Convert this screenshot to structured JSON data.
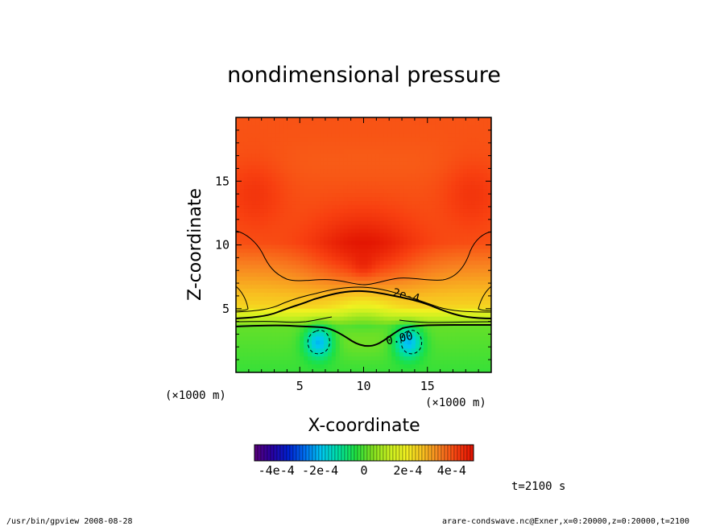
{
  "chart_data": {
    "type": "heatmap",
    "title": "nondimensional pressure",
    "xlabel": "X-coordinate",
    "ylabel": "Z-coordinate",
    "x_unit": "(×1000 m)",
    "y_unit": "(×1000 m)",
    "xlim": [
      0,
      20
    ],
    "ylim": [
      0,
      20
    ],
    "x_ticks": [
      5,
      10,
      15
    ],
    "y_ticks": [
      5,
      10,
      15
    ],
    "x_tick_labels": [
      "5",
      "10",
      "15"
    ],
    "y_tick_labels": [
      "5",
      "10",
      "15"
    ],
    "contour_levels": [
      {
        "value": 0.0,
        "label": "0.00",
        "style": "solid-thick"
      },
      {
        "value": 0.0002,
        "label": "2e-4",
        "style": "solid-thick"
      },
      {
        "value": 0.0004,
        "label": "",
        "style": "solid-thin"
      },
      {
        "value": -0.0001,
        "label": "",
        "style": "dashed"
      }
    ],
    "colorbar": {
      "min": -0.0005,
      "max": 0.0005,
      "tick_labels": [
        "-4e-4",
        "-2e-4",
        "0",
        "2e-4",
        "4e-4"
      ],
      "tick_values": [
        -0.0004,
        -0.0002,
        0,
        0.0002,
        0.0004
      ],
      "colormap": [
        "#5a007a",
        "#2a00a0",
        "#0020d0",
        "#0070f0",
        "#00c8f0",
        "#00e0a0",
        "#20e040",
        "#80e020",
        "#c8f020",
        "#f0f020",
        "#f8c020",
        "#f88020",
        "#f84010",
        "#e01000"
      ]
    },
    "time_label": "t=2100 s"
  },
  "footer": {
    "left": "/usr/bin/gpview   2008-08-28",
    "right": "arare-condswave.nc@Exner,x=0:20000,z=0:20000,t=2100"
  }
}
